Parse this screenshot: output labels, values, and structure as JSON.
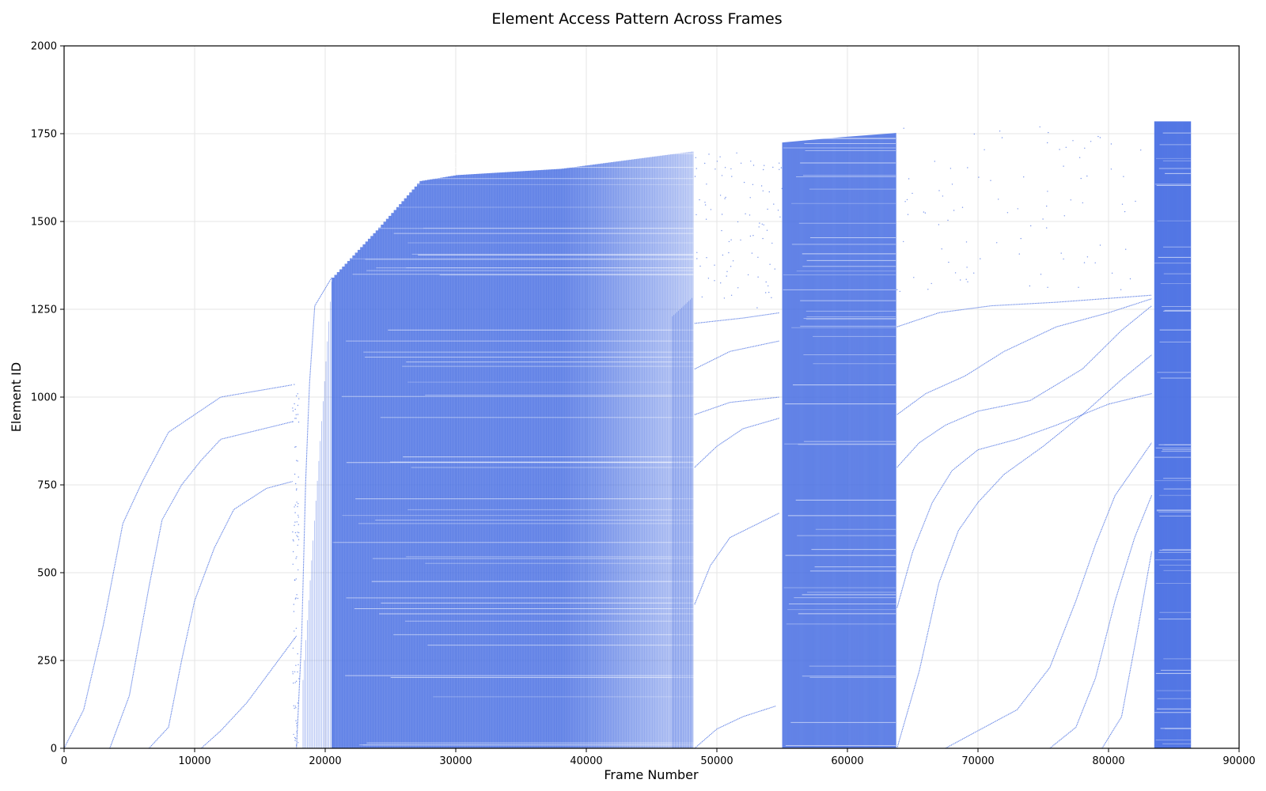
{
  "chart_data": {
    "type": "scatter",
    "title": "Element Access Pattern Across Frames",
    "xlabel": "Frame Number",
    "ylabel": "Element ID",
    "xlim": [
      0,
      90000
    ],
    "ylim": [
      0,
      2000
    ],
    "x_ticks": [
      0,
      10000,
      20000,
      30000,
      40000,
      50000,
      60000,
      70000,
      80000,
      90000
    ],
    "y_ticks": [
      0,
      250,
      500,
      750,
      1000,
      1250,
      1500,
      1750,
      2000
    ],
    "grid": true,
    "point_color": "#4169E1",
    "dense_regions": [
      {
        "x_start": 20500,
        "x_end": 48200,
        "y_min": 0,
        "top_profile": [
          [
            20500,
            1340
          ],
          [
            24000,
            1480
          ],
          [
            27200,
            1615
          ],
          [
            30000,
            1632
          ],
          [
            38000,
            1650
          ],
          [
            48200,
            1700
          ]
        ],
        "fade_start": 38000
      },
      {
        "x_start": 55000,
        "x_end": 63700,
        "y_min": 0,
        "top_profile": [
          [
            55000,
            1725
          ],
          [
            59500,
            1740
          ],
          [
            63700,
            1752
          ]
        ],
        "fade_start": 63700
      },
      {
        "x_start": 83500,
        "x_end": 86300,
        "y_min": 0,
        "top_profile": [
          [
            83500,
            1785
          ],
          [
            86300,
            1785
          ]
        ],
        "fade_start": 86300
      }
    ],
    "sweep_curves": [
      [
        [
          0,
          0
        ],
        [
          1500,
          110
        ],
        [
          3000,
          350
        ],
        [
          4500,
          640
        ],
        [
          6000,
          760
        ],
        [
          8000,
          900
        ],
        [
          10000,
          950
        ],
        [
          12000,
          1000
        ],
        [
          17500,
          1035
        ]
      ],
      [
        [
          3500,
          0
        ],
        [
          5000,
          150
        ],
        [
          6500,
          460
        ],
        [
          7500,
          650
        ],
        [
          9000,
          750
        ],
        [
          10500,
          820
        ],
        [
          12000,
          880
        ],
        [
          17500,
          930
        ]
      ],
      [
        [
          6500,
          0
        ],
        [
          8000,
          60
        ],
        [
          9000,
          250
        ],
        [
          10000,
          420
        ],
        [
          11500,
          570
        ],
        [
          13000,
          680
        ],
        [
          15500,
          740
        ],
        [
          17500,
          760
        ]
      ],
      [
        [
          10500,
          0
        ],
        [
          12000,
          50
        ],
        [
          14000,
          130
        ],
        [
          16000,
          230
        ],
        [
          17800,
          320
        ]
      ],
      [
        [
          17800,
          0
        ],
        [
          18200,
          320
        ],
        [
          18500,
          760
        ],
        [
          18800,
          1040
        ],
        [
          19200,
          1260
        ],
        [
          20500,
          1340
        ]
      ],
      [
        [
          48300,
          0
        ],
        [
          50000,
          55
        ],
        [
          52000,
          90
        ],
        [
          54500,
          120
        ]
      ],
      [
        [
          48300,
          410
        ],
        [
          49500,
          520
        ],
        [
          51000,
          600
        ],
        [
          54800,
          670
        ]
      ],
      [
        [
          48300,
          800
        ],
        [
          50000,
          860
        ],
        [
          52000,
          910
        ],
        [
          54800,
          940
        ]
      ],
      [
        [
          48300,
          950
        ],
        [
          51000,
          985
        ],
        [
          54800,
          1000
        ]
      ],
      [
        [
          48300,
          1080
        ],
        [
          51000,
          1130
        ],
        [
          54800,
          1160
        ]
      ],
      [
        [
          48300,
          1210
        ],
        [
          52000,
          1225
        ],
        [
          54800,
          1240
        ]
      ],
      [
        [
          63800,
          0
        ],
        [
          65500,
          220
        ],
        [
          67000,
          470
        ],
        [
          68500,
          620
        ],
        [
          70000,
          700
        ],
        [
          72000,
          780
        ],
        [
          75000,
          860
        ],
        [
          78000,
          950
        ],
        [
          81000,
          1050
        ],
        [
          83300,
          1120
        ]
      ],
      [
        [
          63800,
          400
        ],
        [
          65000,
          560
        ],
        [
          66500,
          700
        ],
        [
          68000,
          790
        ],
        [
          70000,
          850
        ],
        [
          73000,
          880
        ],
        [
          76000,
          920
        ],
        [
          80000,
          980
        ],
        [
          83300,
          1010
        ]
      ],
      [
        [
          63800,
          800
        ],
        [
          65500,
          870
        ],
        [
          67500,
          920
        ],
        [
          70000,
          960
        ],
        [
          74000,
          990
        ],
        [
          78000,
          1080
        ],
        [
          81000,
          1190
        ],
        [
          83300,
          1260
        ]
      ],
      [
        [
          63800,
          950
        ],
        [
          66000,
          1010
        ],
        [
          69000,
          1060
        ],
        [
          72000,
          1130
        ],
        [
          76000,
          1200
        ],
        [
          80000,
          1240
        ],
        [
          83300,
          1280
        ]
      ],
      [
        [
          63800,
          1200
        ],
        [
          67000,
          1240
        ],
        [
          71000,
          1260
        ],
        [
          76000,
          1270
        ],
        [
          83300,
          1290
        ]
      ],
      [
        [
          67500,
          0
        ],
        [
          70000,
          50
        ],
        [
          73000,
          110
        ],
        [
          75500,
          230
        ],
        [
          77500,
          420
        ],
        [
          79000,
          580
        ],
        [
          80500,
          720
        ],
        [
          82000,
          800
        ],
        [
          83300,
          870
        ]
      ],
      [
        [
          75500,
          0
        ],
        [
          77500,
          60
        ],
        [
          79000,
          200
        ],
        [
          80500,
          420
        ],
        [
          82000,
          600
        ],
        [
          83300,
          720
        ]
      ],
      [
        [
          79500,
          0
        ],
        [
          81000,
          90
        ],
        [
          82200,
          330
        ],
        [
          83300,
          560
        ]
      ]
    ]
  }
}
